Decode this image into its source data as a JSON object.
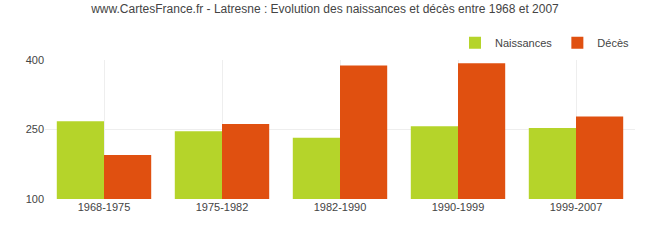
{
  "chart_data": {
    "type": "bar",
    "title": "www.CartesFrance.fr - Latresne : Evolution des naissances et décès entre 1968 et 2007",
    "categories": [
      "1968-1975",
      "1975-1982",
      "1982-1990",
      "1990-1999",
      "1999-2007"
    ],
    "series": [
      {
        "name": "Naissances",
        "color": "#b5d42a",
        "values": [
          268,
          246,
          232,
          257,
          253
        ]
      },
      {
        "name": "Décès",
        "color": "#e05010",
        "values": [
          195,
          262,
          388,
          393,
          278
        ]
      }
    ],
    "ylim": [
      100,
      400
    ],
    "yticks": [
      100,
      250,
      400
    ],
    "grid": true,
    "legend": "upper right"
  }
}
